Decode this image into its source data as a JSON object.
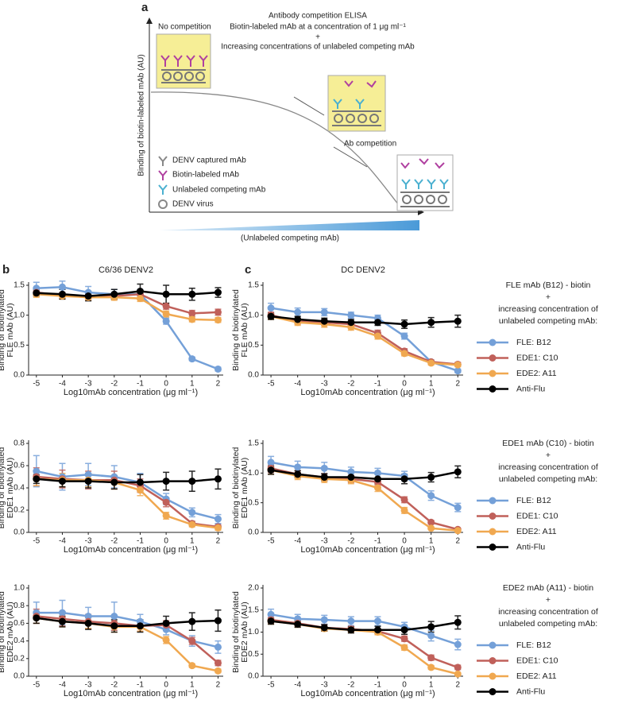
{
  "panel_labels": [
    "a",
    "b",
    "c"
  ],
  "schematic": {
    "title_lines": [
      "Antibody competition ELISA",
      "Biotin-labeled mAb at a concentration of 1 μg ml⁻¹",
      "+",
      "Increasing concentrations of unlabeled competing mAb"
    ],
    "no_competition": "No competition",
    "ab_competition": "Ab competition",
    "ylabel": "Binding of biotin-labeled mAb (AU)",
    "xlabel": "(Unlabeled competing mAb)",
    "legend": [
      "DENV captured mAb",
      "Biotin-labeled mAb",
      "Unlabeled competing mAb",
      "DENV virus"
    ]
  },
  "chart_data": [
    {
      "type": "line",
      "title": "C6/36 DENV2",
      "ylabel": [
        "Binding of biotinylated",
        "FLE mAb (AU)"
      ],
      "xlabel": "Log10mAb concentration (μg ml⁻¹)",
      "x": [
        -5,
        -4,
        -3,
        -2,
        -1,
        0,
        1,
        2
      ],
      "xlim": [
        -5.3,
        2.2
      ],
      "xticks": [
        -5,
        -4,
        -3,
        -2,
        -1,
        0,
        1,
        2
      ],
      "ylim": [
        0,
        1.5
      ],
      "yticks": [
        {
          "value": 0,
          "label": "0.0"
        },
        0.5,
        {
          "value": 1,
          "label": "1.0"
        },
        1.5
      ],
      "series": [
        {
          "color": "#74a0d8",
          "values": [
            1.45,
            1.47,
            1.38,
            1.35,
            1.35,
            0.9,
            0.27,
            0.1
          ],
          "errors": [
            0.1,
            0.1,
            0.1,
            0.08,
            0.08,
            0.05,
            0.03,
            0.03
          ]
        },
        {
          "color": "#c0605a",
          "values": [
            1.38,
            1.33,
            1.3,
            1.32,
            1.35,
            1.15,
            1.03,
            1.05
          ],
          "errors": [
            0.05,
            0.05,
            0.05,
            0.05,
            0.05,
            0.05,
            0.05,
            0.05
          ]
        },
        {
          "color": "#f0a850",
          "values": [
            1.35,
            1.32,
            1.3,
            1.3,
            1.28,
            1.02,
            0.93,
            0.92
          ],
          "errors": [
            0.05,
            0.05,
            0.05,
            0.05,
            0.05,
            0.05,
            0.04,
            0.04
          ]
        },
        {
          "color": "#000000",
          "values": [
            1.37,
            1.35,
            1.32,
            1.35,
            1.4,
            1.35,
            1.35,
            1.38
          ],
          "errors": [
            0.05,
            0.08,
            0.08,
            0.08,
            0.12,
            0.15,
            0.1,
            0.08
          ]
        }
      ]
    },
    {
      "type": "line",
      "title": "DC DENV2",
      "ylabel": [
        "Binding of biotinylated",
        "FLE mAb (AU)"
      ],
      "xlabel": "Log10mAb concentration (μg ml⁻¹)",
      "legend_title": [
        "FLE mAb (B12) - biotin",
        "+",
        "increasing concentration of",
        "unlabeled competing mAb:"
      ],
      "x": [
        -5,
        -4,
        -3,
        -2,
        -1,
        0,
        1,
        2
      ],
      "xlim": [
        -5.3,
        2.2
      ],
      "xticks": [
        -5,
        -4,
        -3,
        -2,
        -1,
        0,
        1,
        2
      ],
      "ylim": [
        0,
        1.5
      ],
      "yticks": [
        {
          "value": 0,
          "label": "0.0"
        },
        0.5,
        {
          "value": 1,
          "label": "1.0"
        },
        1.5
      ],
      "series": [
        {
          "name": "FLE: B12",
          "color": "#74a0d8",
          "values": [
            1.12,
            1.05,
            1.05,
            1.0,
            0.95,
            0.65,
            0.22,
            0.07
          ],
          "errors": [
            0.08,
            0.07,
            0.06,
            0.05,
            0.05,
            0.05,
            0.03,
            0.03
          ]
        },
        {
          "name": "EDE1: C10",
          "color": "#c0605a",
          "values": [
            1.0,
            0.9,
            0.88,
            0.85,
            0.7,
            0.4,
            0.22,
            0.18
          ],
          "errors": [
            0.05,
            0.05,
            0.05,
            0.05,
            0.05,
            0.04,
            0.03,
            0.03
          ]
        },
        {
          "name": "EDE2: A11",
          "color": "#f0a850",
          "values": [
            0.98,
            0.88,
            0.85,
            0.8,
            0.65,
            0.36,
            0.2,
            0.17
          ],
          "errors": [
            0.05,
            0.05,
            0.05,
            0.05,
            0.05,
            0.04,
            0.03,
            0.03
          ]
        },
        {
          "name": "Anti-Flu",
          "color": "#000000",
          "values": [
            0.98,
            0.93,
            0.9,
            0.88,
            0.88,
            0.85,
            0.88,
            0.9
          ],
          "errors": [
            0.05,
            0.05,
            0.05,
            0.05,
            0.05,
            0.07,
            0.08,
            0.1
          ]
        }
      ]
    },
    {
      "type": "line",
      "ylabel": [
        "Binding of biotinylated",
        "EDE1 mAb (AU)"
      ],
      "xlabel": "Log10mAb concentration (μg ml⁻¹)",
      "x": [
        -5,
        -4,
        -3,
        -2,
        -1,
        0,
        1,
        2
      ],
      "xlim": [
        -5.3,
        2.2
      ],
      "xticks": [
        -5,
        -4,
        -3,
        -2,
        -1,
        0,
        1,
        2
      ],
      "ylim": [
        0,
        0.8
      ],
      "yticks": [
        {
          "value": 0,
          "label": "0.0"
        },
        0.2,
        0.4,
        0.6,
        0.8
      ],
      "series": [
        {
          "color": "#74a0d8",
          "values": [
            0.55,
            0.5,
            0.52,
            0.5,
            0.45,
            0.3,
            0.18,
            0.12
          ],
          "errors": [
            0.14,
            0.12,
            0.1,
            0.1,
            0.08,
            0.05,
            0.04,
            0.04
          ]
        },
        {
          "color": "#c0605a",
          "values": [
            0.5,
            0.48,
            0.47,
            0.47,
            0.42,
            0.27,
            0.08,
            0.05
          ],
          "errors": [
            0.08,
            0.08,
            0.08,
            0.08,
            0.06,
            0.04,
            0.02,
            0.02
          ]
        },
        {
          "color": "#f0a850",
          "values": [
            0.48,
            0.47,
            0.47,
            0.45,
            0.38,
            0.15,
            0.07,
            0.04
          ],
          "errors": [
            0.06,
            0.06,
            0.06,
            0.06,
            0.05,
            0.03,
            0.02,
            0.02
          ]
        },
        {
          "color": "#000000",
          "values": [
            0.48,
            0.46,
            0.46,
            0.45,
            0.45,
            0.46,
            0.46,
            0.48
          ],
          "errors": [
            0.04,
            0.05,
            0.06,
            0.06,
            0.07,
            0.08,
            0.09,
            0.09
          ]
        }
      ]
    },
    {
      "type": "line",
      "ylabel": [
        "Binding of biotinylated",
        "EDE1 mAb (AU)"
      ],
      "xlabel": "Log10mAb concentration (μg ml⁻¹)",
      "legend_title": [
        "EDE1 mAb (C10) - biotin",
        "+",
        "increasing concentration of",
        "unlabeled competing mAb:"
      ],
      "x": [
        -5,
        -4,
        -3,
        -2,
        -1,
        0,
        1,
        2
      ],
      "xlim": [
        -5.3,
        2.2
      ],
      "xticks": [
        -5,
        -4,
        -3,
        -2,
        -1,
        0,
        1,
        2
      ],
      "ylim": [
        0,
        1.5
      ],
      "yticks": [
        {
          "value": 0,
          "label": "0.0"
        },
        0.5,
        {
          "value": 1,
          "label": "1.0"
        },
        1.5
      ],
      "series": [
        {
          "name": "FLE: B12",
          "color": "#74a0d8",
          "values": [
            1.18,
            1.1,
            1.08,
            1.02,
            1.0,
            0.95,
            0.62,
            0.42
          ],
          "errors": [
            0.1,
            0.1,
            0.1,
            0.08,
            0.08,
            0.08,
            0.08,
            0.07
          ]
        },
        {
          "name": "EDE1: C10",
          "color": "#c0605a",
          "values": [
            1.08,
            0.98,
            0.93,
            0.9,
            0.85,
            0.55,
            0.17,
            0.05
          ],
          "errors": [
            0.07,
            0.06,
            0.06,
            0.06,
            0.06,
            0.05,
            0.03,
            0.02
          ]
        },
        {
          "name": "EDE2: A11",
          "color": "#f0a850",
          "values": [
            1.05,
            0.95,
            0.9,
            0.88,
            0.75,
            0.37,
            0.07,
            0.03
          ],
          "errors": [
            0.07,
            0.06,
            0.06,
            0.06,
            0.06,
            0.05,
            0.02,
            0.02
          ]
        },
        {
          "name": "Anti-Flu",
          "color": "#000000",
          "values": [
            1.05,
            0.98,
            0.93,
            0.93,
            0.9,
            0.9,
            0.93,
            1.02
          ],
          "errors": [
            0.07,
            0.06,
            0.06,
            0.07,
            0.08,
            0.08,
            0.08,
            0.1
          ]
        }
      ]
    },
    {
      "type": "line",
      "ylabel": [
        "Binding of biotinylated",
        "EDE2 mAb (AU)"
      ],
      "xlabel": "Log10mAb concentration (μg ml⁻¹)",
      "x": [
        -5,
        -4,
        -3,
        -2,
        -1,
        0,
        1,
        2
      ],
      "xlim": [
        -5.3,
        2.2
      ],
      "xticks": [
        -5,
        -4,
        -3,
        -2,
        -1,
        0,
        1,
        2
      ],
      "ylim": [
        0,
        1.0
      ],
      "yticks": [
        {
          "value": 0,
          "label": "0.0"
        },
        0.2,
        0.4,
        0.6,
        0.8,
        {
          "value": 1,
          "label": "1.0"
        }
      ],
      "series": [
        {
          "color": "#74a0d8",
          "values": [
            0.72,
            0.72,
            0.68,
            0.68,
            0.62,
            0.53,
            0.4,
            0.33
          ],
          "errors": [
            0.12,
            0.14,
            0.1,
            0.16,
            0.08,
            0.06,
            0.06,
            0.07
          ]
        },
        {
          "color": "#c0605a",
          "values": [
            0.68,
            0.65,
            0.62,
            0.6,
            0.57,
            0.58,
            0.4,
            0.15
          ],
          "errors": [
            0.08,
            0.08,
            0.08,
            0.08,
            0.06,
            0.05,
            0.04,
            0.03
          ]
        },
        {
          "color": "#f0a850",
          "values": [
            0.66,
            0.62,
            0.6,
            0.56,
            0.56,
            0.41,
            0.12,
            0.06
          ],
          "errors": [
            0.06,
            0.06,
            0.06,
            0.06,
            0.05,
            0.04,
            0.02,
            0.02
          ]
        },
        {
          "color": "#000000",
          "values": [
            0.66,
            0.62,
            0.6,
            0.57,
            0.57,
            0.6,
            0.62,
            0.63
          ],
          "errors": [
            0.06,
            0.06,
            0.07,
            0.07,
            0.07,
            0.08,
            0.1,
            0.12
          ]
        }
      ]
    },
    {
      "type": "line",
      "ylabel": [
        "Binding of biotinylated",
        "EDE2 mAb (AU)"
      ],
      "xlabel": "Log10mAb concentration (μg ml⁻¹)",
      "legend_title": [
        "EDE2 mAb (A11) - biotin",
        "+",
        "increasing concentration of",
        "unlabeled competing mAb:"
      ],
      "x": [
        -5,
        -4,
        -3,
        -2,
        -1,
        0,
        1,
        2
      ],
      "xlim": [
        -5.3,
        2.2
      ],
      "xticks": [
        -5,
        -4,
        -3,
        -2,
        -1,
        0,
        1,
        2
      ],
      "ylim": [
        0,
        2.0
      ],
      "yticks": [
        {
          "value": 0,
          "label": "0.0"
        },
        0.5,
        {
          "value": 1,
          "label": "1.0"
        },
        1.5,
        {
          "value": 2,
          "label": "2.0"
        }
      ],
      "series": [
        {
          "name": "FLE: B12",
          "color": "#74a0d8",
          "values": [
            1.4,
            1.3,
            1.28,
            1.25,
            1.25,
            1.12,
            0.92,
            0.72
          ],
          "errors": [
            0.12,
            0.1,
            0.1,
            0.1,
            0.1,
            0.1,
            0.12,
            0.12
          ]
        },
        {
          "name": "EDE1: C10",
          "color": "#c0605a",
          "values": [
            1.28,
            1.2,
            1.1,
            1.07,
            1.02,
            0.85,
            0.42,
            0.2
          ],
          "errors": [
            0.08,
            0.07,
            0.07,
            0.06,
            0.06,
            0.06,
            0.06,
            0.05
          ]
        },
        {
          "name": "EDE2: A11",
          "color": "#f0a850",
          "values": [
            1.25,
            1.18,
            1.08,
            1.05,
            1.0,
            0.65,
            0.2,
            0.05
          ],
          "errors": [
            0.07,
            0.07,
            0.06,
            0.06,
            0.06,
            0.06,
            0.04,
            0.03
          ]
        },
        {
          "name": "Anti-Flu",
          "color": "#000000",
          "values": [
            1.25,
            1.18,
            1.1,
            1.05,
            1.05,
            1.05,
            1.12,
            1.22
          ],
          "errors": [
            0.07,
            0.07,
            0.07,
            0.07,
            0.08,
            0.1,
            0.12,
            0.15
          ]
        }
      ]
    }
  ]
}
